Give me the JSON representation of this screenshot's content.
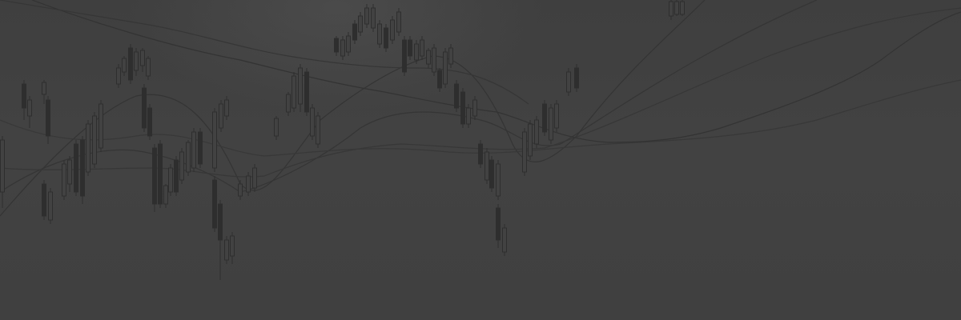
{
  "image": {
    "description_kind": "decorative stock-chart background",
    "colors": {
      "background": "#424242",
      "wick": "#2e2e2e",
      "candle_up_fill": "none",
      "candle_down_fill": "#2e2e2e",
      "ma_lines": [
        "#333333",
        "#353535",
        "#373737",
        "#393939"
      ]
    }
  }
}
